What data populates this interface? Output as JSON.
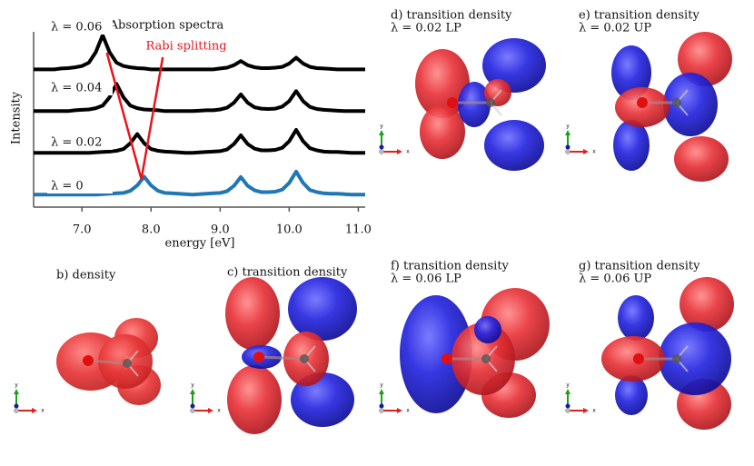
{
  "chart_data": {
    "type": "line",
    "title": "a) Absorption spectra",
    "xlabel": "energy [eV]",
    "ylabel": "Intensity",
    "annotation": "Rabi splitting",
    "rabi_line": {
      "color": "#e8141c",
      "x": [
        7.36,
        7.86,
        8.17
      ],
      "y": [
        3.4,
        0.37,
        3.29
      ]
    },
    "xlim": [
      6.3,
      11.1
    ],
    "ylim": [
      -0.3,
      3.9
    ],
    "xticks": [
      {
        "value": 7,
        "label": "7.0"
      },
      {
        "value": 8,
        "label": "8.0"
      },
      {
        "value": 9,
        "label": "9.0"
      },
      {
        "value": 10,
        "label": "10.0"
      },
      {
        "value": 11,
        "label": "11.0"
      }
    ],
    "x": [
      6.3,
      6.4,
      6.5,
      6.6,
      6.7,
      6.8,
      6.9,
      7.0,
      7.1,
      7.2,
      7.3,
      7.4,
      7.5,
      7.6,
      7.7,
      7.8,
      7.9,
      8.0,
      8.1,
      8.2,
      8.3,
      8.4,
      8.5,
      8.6,
      8.7,
      8.8,
      8.9,
      9.0,
      9.1,
      9.2,
      9.3,
      9.4,
      9.5,
      9.6,
      9.7,
      9.8,
      9.9,
      10.0,
      10.1,
      10.2,
      10.3,
      10.4,
      10.5,
      10.6,
      10.7,
      10.8,
      10.9,
      11.0,
      11.1
    ],
    "series": [
      {
        "name": "λ = 0",
        "color": "#1f77b4",
        "values": [
          0,
          0,
          0,
          0,
          0,
          0,
          0,
          0,
          0,
          0,
          0.01,
          0.02,
          0.03,
          0.04,
          0.09,
          0.22,
          0.43,
          0.22,
          0.09,
          0.04,
          0.03,
          0.02,
          0.01,
          0,
          0.01,
          0.02,
          0.03,
          0.04,
          0.08,
          0.21,
          0.42,
          0.21,
          0.1,
          0.06,
          0.06,
          0.07,
          0.12,
          0.28,
          0.55,
          0.28,
          0.11,
          0.06,
          0.03,
          0.02,
          0.02,
          0.01,
          0,
          0,
          0
        ]
      },
      {
        "name": "λ = 0.02",
        "color": "#000000",
        "values": [
          1,
          1,
          1,
          1,
          1,
          1,
          1,
          1,
          1,
          1.01,
          1.02,
          1.03,
          1.05,
          1.09,
          1.23,
          1.45,
          1.23,
          1.09,
          1.05,
          1.03,
          1.02,
          1.01,
          1,
          1,
          1.01,
          1.02,
          1.03,
          1.04,
          1.08,
          1.21,
          1.42,
          1.21,
          1.1,
          1.06,
          1.06,
          1.07,
          1.12,
          1.28,
          1.55,
          1.28,
          1.11,
          1.06,
          1.03,
          1.02,
          1.02,
          1.01,
          1,
          1,
          1
        ]
      },
      {
        "name": "λ = 0.04",
        "color": "#000000",
        "values": [
          2,
          2,
          2,
          2,
          2,
          2,
          2.02,
          2.03,
          2.04,
          2.07,
          2.13,
          2.33,
          2.65,
          2.33,
          2.13,
          2.07,
          2.04,
          2.03,
          2.02,
          2,
          2,
          2,
          2,
          2,
          2.01,
          2.02,
          2.02,
          2.04,
          2.08,
          2.2,
          2.4,
          2.2,
          2.09,
          2.06,
          2.05,
          2.06,
          2.11,
          2.24,
          2.48,
          2.24,
          2.1,
          2.05,
          2.03,
          2.02,
          2.01,
          2,
          2,
          2,
          2
        ]
      },
      {
        "name": "λ = 0.06",
        "color": "#000000",
        "values": [
          3,
          3,
          3,
          3,
          3.02,
          3.03,
          3.05,
          3.08,
          3.16,
          3.41,
          3.82,
          3.41,
          3.16,
          3.08,
          3.05,
          3.03,
          3.02,
          3,
          3,
          3,
          3,
          3,
          3,
          3,
          3,
          3,
          3,
          3.02,
          3.04,
          3.1,
          3.2,
          3.1,
          3.05,
          3.03,
          3.03,
          3.04,
          3.06,
          3.14,
          3.28,
          3.14,
          3.06,
          3.03,
          3.02,
          3.01,
          3,
          3,
          3,
          3,
          3
        ]
      }
    ]
  },
  "panels": [
    {
      "title": "b) density"
    },
    {
      "title": "c) transition density"
    },
    {
      "title": "d) transition density",
      "subtitle": "λ = 0.02 LP"
    },
    {
      "title": "e) transition density",
      "subtitle": "λ = 0.02 UP"
    },
    {
      "title": "f) transition density",
      "subtitle": "λ = 0.06 LP"
    },
    {
      "title": "g) transition density",
      "subtitle": "λ = 0.06 UP"
    }
  ],
  "axis_glyph": {
    "x": "x",
    "y": "y"
  }
}
